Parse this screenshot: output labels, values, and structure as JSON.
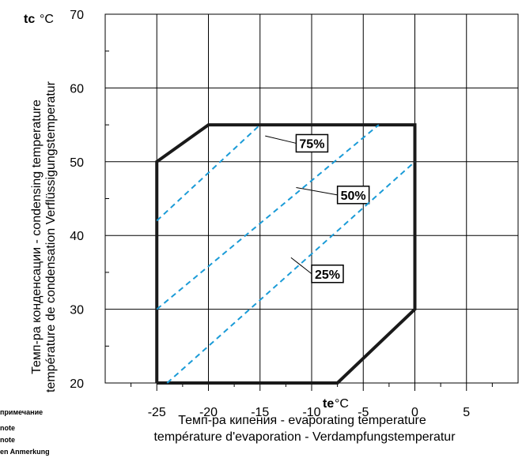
{
  "chart_data": {
    "type": "line",
    "title": "",
    "y_symbol": "tc",
    "y_unit": "°C",
    "x_symbol": "te",
    "x_unit": "°C",
    "ylabel_lines": [
      "Темп-ра конденсации - condensing temperature",
      "température de condensation  Verflüssigungstemperatur"
    ],
    "xlabel_lines": [
      "Темп-ра кипения  -   evaporating temperature",
      "température d'evaporation  -  Verdampfungstemperatur"
    ],
    "xlim": [
      -30,
      10
    ],
    "ylim": [
      20,
      70
    ],
    "x_ticks": [
      -25,
      -20,
      -15,
      -10,
      -5,
      0,
      5
    ],
    "y_ticks": [
      20,
      30,
      40,
      50,
      60,
      70
    ],
    "grid": true,
    "envelope": {
      "name": "operating-envelope",
      "points": [
        [
          -25,
          20
        ],
        [
          -25,
          50
        ],
        [
          -20,
          55
        ],
        [
          0,
          55
        ],
        [
          0,
          30
        ],
        [
          -7.5,
          20
        ],
        [
          -25,
          20
        ]
      ]
    },
    "series": [
      {
        "label": "75%",
        "color": "#1a9bd7",
        "points": [
          [
            -25,
            42
          ],
          [
            -15,
            55
          ]
        ],
        "label_at": [
          -11.5,
          52.5
        ],
        "leader_from": [
          -14.5,
          53.5
        ]
      },
      {
        "label": "50%",
        "color": "#1a9bd7",
        "points": [
          [
            -25,
            30
          ],
          [
            -3.5,
            55
          ]
        ],
        "label_at": [
          -7.5,
          45.5
        ],
        "leader_from": [
          -11.5,
          46.5
        ]
      },
      {
        "label": "25%",
        "color": "#1a9bd7",
        "points": [
          [
            -24,
            20
          ],
          [
            0,
            50
          ]
        ],
        "label_at": [
          -10,
          34.8
        ],
        "leader_from": [
          -12,
          37
        ]
      }
    ],
    "side_notes": [
      "примечание",
      "note",
      "note",
      "en Anmerkung"
    ]
  }
}
